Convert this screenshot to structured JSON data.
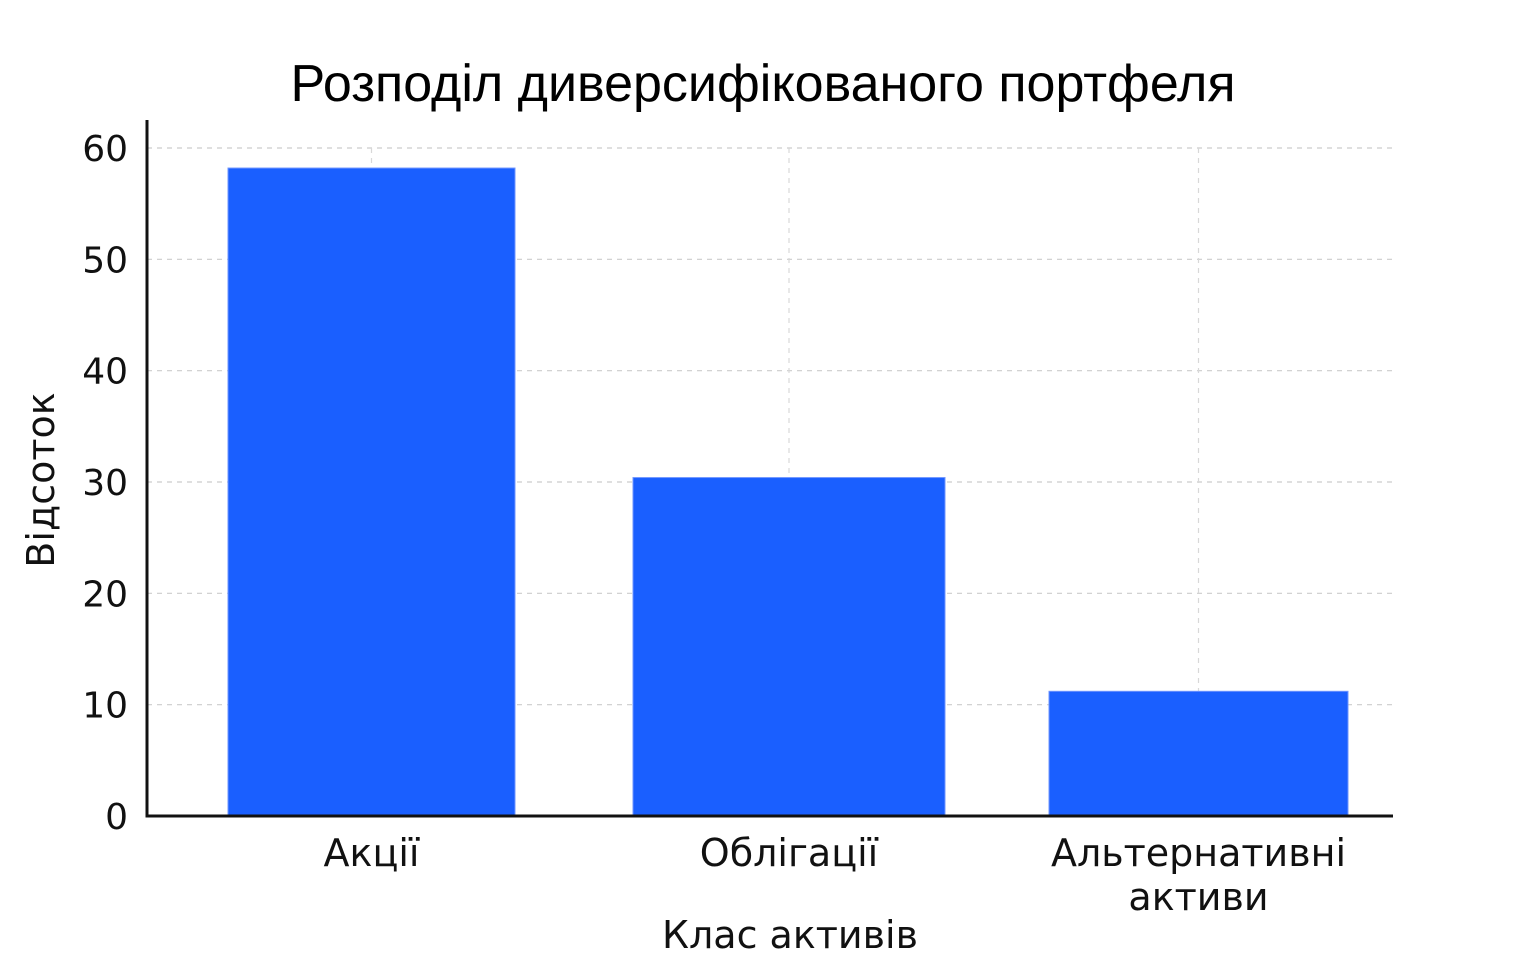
{
  "chart_data": {
    "type": "bar",
    "title": "Розподіл диверсифікованого портфеля",
    "xlabel": "Клас активів",
    "ylabel": "Відсоток",
    "categories": [
      "Акції",
      "Облігації",
      "Альтернативні активи"
    ],
    "category_lines": [
      [
        "Акції"
      ],
      [
        "Облігації"
      ],
      [
        "Альтернативні",
        "активи"
      ]
    ],
    "values": [
      58.2,
      30.4,
      11.2
    ],
    "ylim": [
      0,
      60
    ],
    "yticks": [
      0,
      10,
      20,
      30,
      40,
      50,
      60
    ],
    "grid": true,
    "grid_style": "dashed",
    "legend": null,
    "bar_color": "#1a5fff"
  }
}
